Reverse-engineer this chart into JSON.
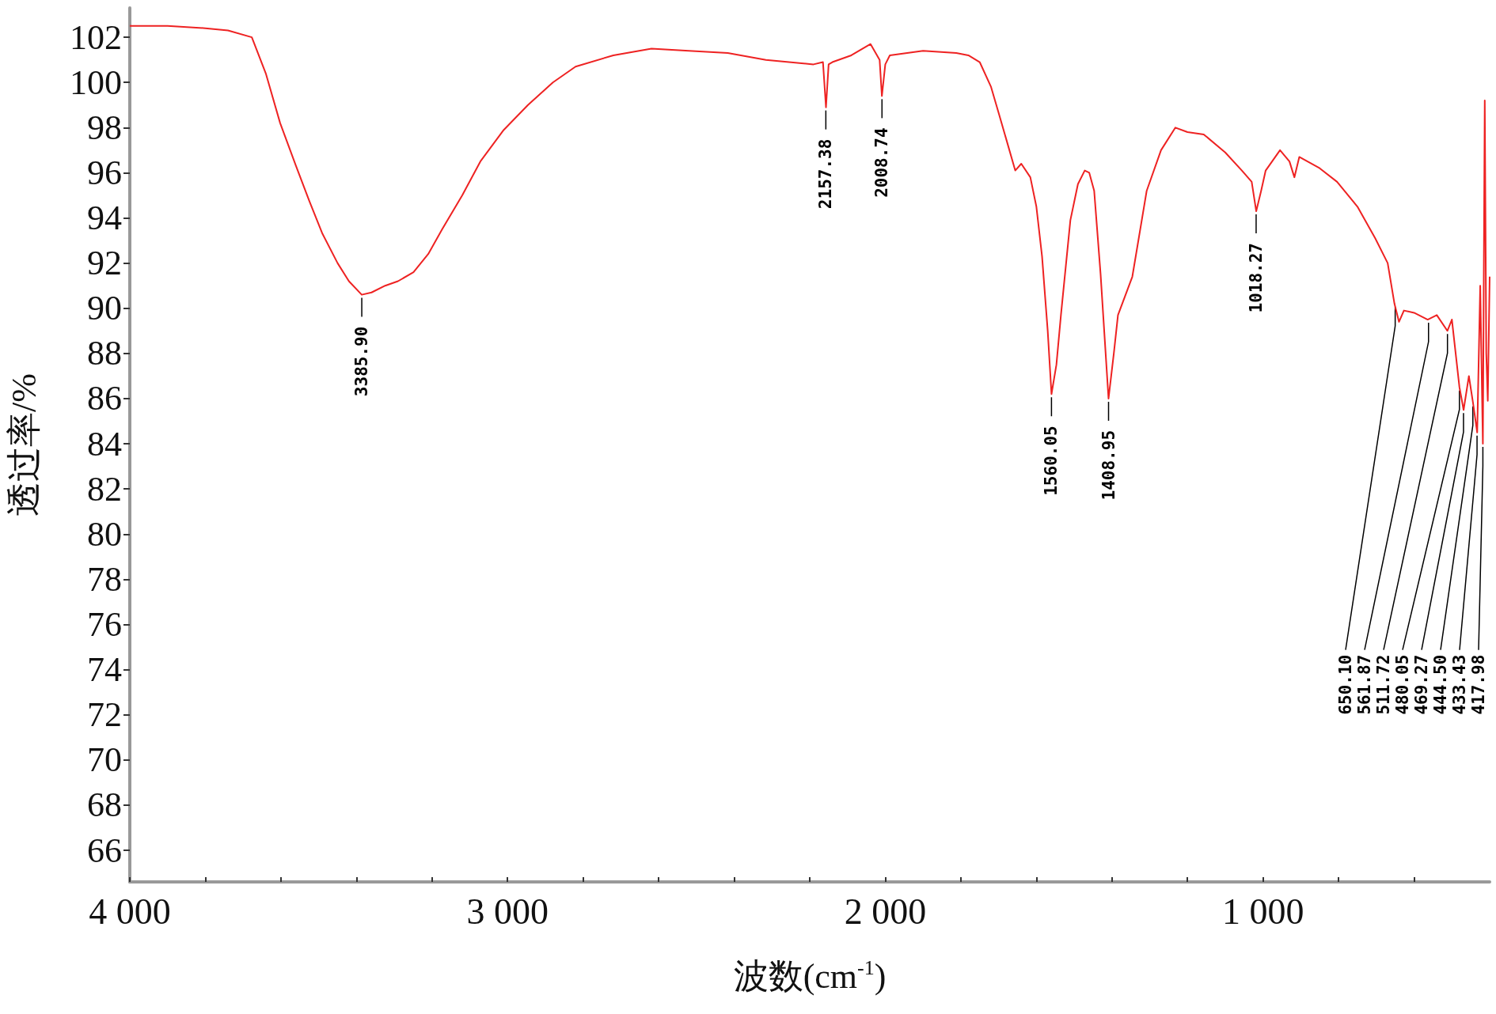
{
  "chart_data": {
    "type": "line",
    "xlabel": "波数(cm$^{-1}$)",
    "ylabel": "透过率/%",
    "xlim": [
      4000,
      400
    ],
    "xticks": [
      {
        "value": 4000,
        "label": "4 000"
      },
      {
        "value": 3800,
        "label": null
      },
      {
        "value": 3600,
        "label": null
      },
      {
        "value": 3400,
        "label": null
      },
      {
        "value": 3200,
        "label": null
      },
      {
        "value": 3000,
        "label": "3 000"
      },
      {
        "value": 2800,
        "label": null
      },
      {
        "value": 2600,
        "label": null
      },
      {
        "value": 2400,
        "label": null
      },
      {
        "value": 2200,
        "label": null
      },
      {
        "value": 2000,
        "label": "2 000"
      },
      {
        "value": 1800,
        "label": null
      },
      {
        "value": 1600,
        "label": null
      },
      {
        "value": 1400,
        "label": null
      },
      {
        "value": 1200,
        "label": null
      },
      {
        "value": 1000,
        "label": "1 000"
      },
      {
        "value": 800,
        "label": null
      },
      {
        "value": 600,
        "label": null
      }
    ],
    "ylim": [
      64.6,
      103.3
    ],
    "yticks": [
      66,
      68,
      70,
      72,
      74,
      76,
      78,
      80,
      82,
      84,
      86,
      88,
      90,
      92,
      94,
      96,
      98,
      100,
      102
    ],
    "grid": false,
    "marker": "none",
    "line_style": "solid",
    "series": [
      {
        "color": "#ee2222",
        "x": [
          4000,
          3900,
          3800,
          3740,
          3677,
          3640,
          3602,
          3560,
          3526,
          3490,
          3450,
          3420,
          3386,
          3360,
          3324,
          3290,
          3249,
          3210,
          3173,
          3120,
          3072,
          3010,
          2946,
          2880,
          2820,
          2720,
          2619,
          2520,
          2417,
          2316,
          2190,
          2165,
          2157,
          2150,
          2140,
          2090,
          2039,
          2015,
          2009,
          2000,
          1988,
          1900,
          1812,
          1780,
          1750,
          1720,
          1699,
          1680,
          1656,
          1640,
          1616,
          1600,
          1585,
          1570,
          1560,
          1547,
          1535,
          1510,
          1490,
          1472,
          1460,
          1447,
          1430,
          1409,
          1395,
          1384,
          1346,
          1308,
          1270,
          1232,
          1200,
          1157,
          1100,
          1056,
          1030,
          1018,
          1005,
          993,
          955,
          930,
          917,
          904,
          850,
          804,
          750,
          703,
          670,
          652,
          640,
          627,
          600,
          564,
          540,
          512,
          500,
          480,
          469,
          455,
          444,
          433,
          425,
          418,
          413,
          409,
          405,
          400
        ],
        "values": [
          102.5,
          102.5,
          102.4,
          102.3,
          102.0,
          100.4,
          98.2,
          96.3,
          94.8,
          93.3,
          92.0,
          91.2,
          90.6,
          90.7,
          91.0,
          91.2,
          91.6,
          92.4,
          93.5,
          95.0,
          96.5,
          97.9,
          99.0,
          100.0,
          100.7,
          101.2,
          101.5,
          101.4,
          101.3,
          101.0,
          100.8,
          100.9,
          98.9,
          100.8,
          100.9,
          101.2,
          101.7,
          101.0,
          99.4,
          100.8,
          101.2,
          101.4,
          101.3,
          101.2,
          100.9,
          99.8,
          98.6,
          97.5,
          96.1,
          96.4,
          95.8,
          94.5,
          92.3,
          89.0,
          86.2,
          87.5,
          89.7,
          93.9,
          95.5,
          96.1,
          96.0,
          95.2,
          91.5,
          86.0,
          88.0,
          89.7,
          91.4,
          95.2,
          97.0,
          98.0,
          97.8,
          97.7,
          96.9,
          96.1,
          95.6,
          94.3,
          95.2,
          96.1,
          97.0,
          96.5,
          95.8,
          96.7,
          96.2,
          95.6,
          94.5,
          93.1,
          92.0,
          90.2,
          89.4,
          89.9,
          89.8,
          89.5,
          89.7,
          89.0,
          89.5,
          86.5,
          85.5,
          87.0,
          85.8,
          84.5,
          91.0,
          84.0,
          99.2,
          88.0,
          85.9,
          91.4
        ]
      }
    ],
    "annotations": [
      {
        "text": "3385.90",
        "x": 3385.9,
        "y": 90.6
      },
      {
        "text": "2157.38",
        "x": 2157.38,
        "y": 98.9
      },
      {
        "text": "2008.74",
        "x": 2008.74,
        "y": 99.4
      },
      {
        "text": "1560.05",
        "x": 1560.05,
        "y": 86.2
      },
      {
        "text": "1408.95",
        "x": 1408.95,
        "y": 86.0
      },
      {
        "text": "1018.27",
        "x": 1018.27,
        "y": 94.3
      },
      {
        "text": "650.10",
        "x": 650.1,
        "y": 90.2
      },
      {
        "text": "561.87",
        "x": 561.87,
        "y": 89.5
      },
      {
        "text": "511.72",
        "x": 511.72,
        "y": 89.0
      },
      {
        "text": "480.05",
        "x": 480.05,
        "y": 86.5
      },
      {
        "text": "469.27",
        "x": 469.27,
        "y": 85.5
      },
      {
        "text": "444.50",
        "x": 444.5,
        "y": 85.8
      },
      {
        "text": "433.43",
        "x": 433.43,
        "y": 84.5
      },
      {
        "text": "417.98",
        "x": 417.98,
        "y": 84.0
      }
    ]
  }
}
